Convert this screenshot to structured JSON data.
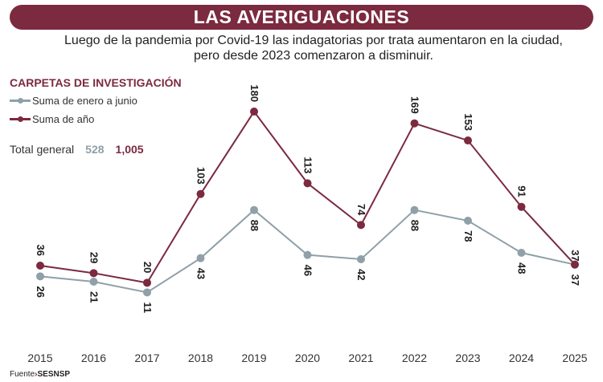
{
  "title": "LAS AVERIGUACIONES",
  "subtitle_1": "Luego de la pandemia por Covid-19 las indagatorias por trata aumentaron en la ciudad,",
  "subtitle_2": "pero desde 2023 comenzaron a disminuir.",
  "source_label": "Fuente",
  "source": "SESNSP",
  "totals": {
    "label": "Total general",
    "jan_jun": "528",
    "year": "1,005"
  },
  "colors": {
    "jan_jun": "#8fa0a8",
    "year": "#7b2a40"
  },
  "chart_data": {
    "type": "line",
    "title": "CARPETAS DE INVESTIGACIÓN",
    "categories": [
      "2015",
      "2016",
      "2017",
      "2018",
      "2019",
      "2020",
      "2021",
      "2022",
      "2023",
      "2024",
      "2025"
    ],
    "series": [
      {
        "name": "Suma de enero a junio",
        "values": [
          26,
          21,
          11,
          43,
          88,
          46,
          42,
          88,
          78,
          48,
          37
        ]
      },
      {
        "name": "Suma de año",
        "values": [
          36,
          29,
          20,
          103,
          180,
          113,
          74,
          169,
          153,
          91,
          37
        ]
      }
    ],
    "grid": false,
    "legend": "top-left"
  }
}
